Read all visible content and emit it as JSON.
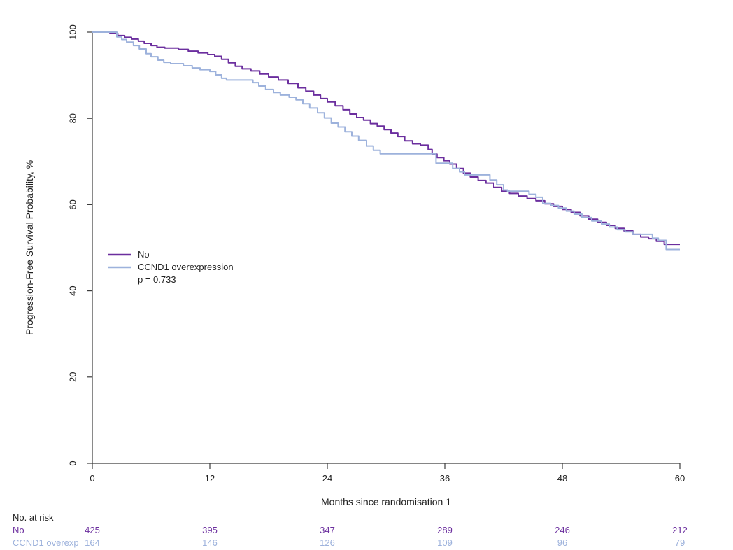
{
  "chart_data": {
    "type": "line",
    "subtype": "kaplan-meier-step",
    "title": "",
    "xlabel": "Months since randomisation 1",
    "ylabel": "Progression-Free Survival Probability, %",
    "xlim": [
      0,
      60
    ],
    "ylim": [
      0,
      100
    ],
    "xticks": [
      0,
      12,
      24,
      36,
      48,
      60
    ],
    "yticks": [
      0,
      20,
      40,
      60,
      80,
      100
    ],
    "grid": false,
    "legend": {
      "position": "inside-left-middle",
      "items": [
        {
          "label": "No",
          "color": "#6B2E9E"
        },
        {
          "label": "CCND1 overexpression",
          "color": "#9DB2DC"
        }
      ],
      "annotation": "p =  0.733"
    },
    "series": [
      {
        "name": "No",
        "color": "#6B2E9E",
        "points": [
          [
            0,
            100
          ],
          [
            1.8,
            99.7
          ],
          [
            2.6,
            99.2
          ],
          [
            3.3,
            98.8
          ],
          [
            4,
            98.4
          ],
          [
            4.7,
            97.9
          ],
          [
            5.3,
            97.4
          ],
          [
            6,
            96.9
          ],
          [
            6.6,
            96.5
          ],
          [
            7.4,
            96.3
          ],
          [
            8.8,
            96.0
          ],
          [
            9.8,
            95.6
          ],
          [
            10.8,
            95.2
          ],
          [
            11.8,
            94.8
          ],
          [
            12.5,
            94.4
          ],
          [
            13.2,
            93.7
          ],
          [
            13.9,
            92.9
          ],
          [
            14.6,
            92.1
          ],
          [
            15.3,
            91.5
          ],
          [
            16.2,
            91.0
          ],
          [
            17.1,
            90.3
          ],
          [
            18,
            89.6
          ],
          [
            19,
            88.9
          ],
          [
            20,
            88.1
          ],
          [
            21,
            87.1
          ],
          [
            21.8,
            86.3
          ],
          [
            22.6,
            85.4
          ],
          [
            23.3,
            84.6
          ],
          [
            24,
            83.8
          ],
          [
            24.8,
            82.9
          ],
          [
            25.6,
            82.0
          ],
          [
            26.3,
            81.0
          ],
          [
            27,
            80.2
          ],
          [
            27.7,
            79.6
          ],
          [
            28.4,
            78.8
          ],
          [
            29.1,
            78.2
          ],
          [
            29.8,
            77.4
          ],
          [
            30.5,
            76.6
          ],
          [
            31.2,
            75.8
          ],
          [
            31.9,
            74.8
          ],
          [
            32.7,
            74.1
          ],
          [
            33.5,
            73.8
          ],
          [
            34.3,
            72.8
          ],
          [
            34.7,
            71.7
          ],
          [
            35.2,
            70.9
          ],
          [
            35.9,
            70.2
          ],
          [
            36.5,
            69.4
          ],
          [
            37.2,
            68.4
          ],
          [
            37.9,
            67.3
          ],
          [
            38.6,
            66.4
          ],
          [
            39.4,
            65.6
          ],
          [
            40.2,
            65.0
          ],
          [
            41,
            64.0
          ],
          [
            41.8,
            63.1
          ],
          [
            42.6,
            62.6
          ],
          [
            43.5,
            62.0
          ],
          [
            44.4,
            61.4
          ],
          [
            45.3,
            60.9
          ],
          [
            46.2,
            60.2
          ],
          [
            47.1,
            59.6
          ],
          [
            48,
            58.9
          ],
          [
            48.9,
            58.2
          ],
          [
            49.8,
            57.4
          ],
          [
            50.7,
            56.6
          ],
          [
            51.6,
            55.9
          ],
          [
            52.5,
            55.2
          ],
          [
            53.4,
            54.5
          ],
          [
            54.3,
            53.9
          ],
          [
            55.2,
            53.1
          ],
          [
            56,
            52.5
          ],
          [
            56.8,
            52.1
          ],
          [
            57.6,
            51.5
          ],
          [
            58.4,
            50.8
          ],
          [
            60,
            50.8
          ]
        ]
      },
      {
        "name": "CCND1 overexpression",
        "color": "#9DB2DC",
        "points": [
          [
            0,
            100
          ],
          [
            2.1,
            100
          ],
          [
            2.5,
            98.9
          ],
          [
            3,
            98.3
          ],
          [
            3.5,
            97.7
          ],
          [
            4.2,
            96.9
          ],
          [
            4.8,
            96.1
          ],
          [
            5.5,
            95.0
          ],
          [
            6,
            94.3
          ],
          [
            6.7,
            93.5
          ],
          [
            7.3,
            93.0
          ],
          [
            8,
            92.7
          ],
          [
            9.3,
            92.2
          ],
          [
            10.2,
            91.7
          ],
          [
            11,
            91.3
          ],
          [
            12,
            90.9
          ],
          [
            12.6,
            90.1
          ],
          [
            13.2,
            89.3
          ],
          [
            13.7,
            88.9
          ],
          [
            16.4,
            88.3
          ],
          [
            17,
            87.5
          ],
          [
            17.7,
            86.7
          ],
          [
            18.5,
            86.0
          ],
          [
            19.2,
            85.4
          ],
          [
            20.1,
            84.9
          ],
          [
            20.8,
            84.3
          ],
          [
            21.5,
            83.4
          ],
          [
            22.2,
            82.4
          ],
          [
            23,
            81.3
          ],
          [
            23.7,
            80.1
          ],
          [
            24.4,
            78.9
          ],
          [
            25.1,
            78.0
          ],
          [
            25.8,
            76.9
          ],
          [
            26.5,
            75.9
          ],
          [
            27.2,
            74.9
          ],
          [
            28,
            73.6
          ],
          [
            28.7,
            72.6
          ],
          [
            29.4,
            71.8
          ],
          [
            35.1,
            69.6
          ],
          [
            36.8,
            68.4
          ],
          [
            37.5,
            67.6
          ],
          [
            38,
            66.9
          ],
          [
            40.6,
            65.7
          ],
          [
            41.3,
            64.6
          ],
          [
            42,
            63.4
          ],
          [
            42.4,
            63.1
          ],
          [
            44.6,
            62.4
          ],
          [
            45.3,
            61.7
          ],
          [
            46,
            60.3
          ],
          [
            46.8,
            59.8
          ],
          [
            47.6,
            59.2
          ],
          [
            48.4,
            58.5
          ],
          [
            49.2,
            57.8
          ],
          [
            50,
            57.0
          ],
          [
            51,
            56.2
          ],
          [
            52,
            55.5
          ],
          [
            52.8,
            54.8
          ],
          [
            53.6,
            54.2
          ],
          [
            54.4,
            53.7
          ],
          [
            55.2,
            53.1
          ],
          [
            57.2,
            52.2
          ],
          [
            57.8,
            51.7
          ],
          [
            58.6,
            49.6
          ],
          [
            60,
            49.6
          ]
        ]
      }
    ]
  },
  "risk_table": {
    "header": "No. at risk",
    "months": [
      0,
      12,
      24,
      36,
      48,
      60
    ],
    "rows": [
      {
        "label": "No",
        "color": "#6B2E9E",
        "values": [
          "425",
          "395",
          "347",
          "289",
          "246",
          "212"
        ]
      },
      {
        "label": "CCND1 overexp",
        "color": "#9DB2DC",
        "values": [
          "164",
          "146",
          "126",
          "109",
          "96",
          "79"
        ]
      }
    ]
  },
  "colors": {
    "axis": "#3c3c3c",
    "text": "#1f1f1f",
    "background": "#ffffff"
  }
}
